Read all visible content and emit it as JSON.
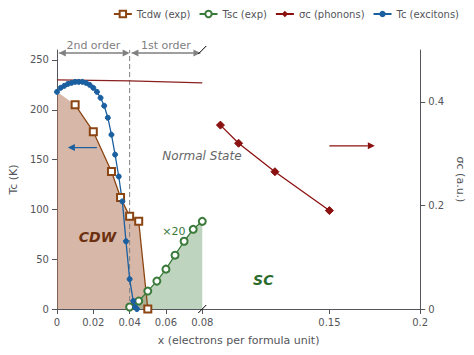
{
  "chart_data": {
    "type": "line",
    "xlabel": "x (electrons per formula unit)",
    "ylabel": "Tc (K)",
    "y2label": "σc (a.u.)",
    "xlim": [
      0,
      0.2
    ],
    "xticks": [
      0,
      0.02,
      0.04,
      0.06,
      0.08,
      0.15,
      0.2
    ],
    "ylim": [
      0,
      260
    ],
    "yticks": [
      0,
      50,
      100,
      150,
      200,
      250
    ],
    "y2lim": [
      0,
      0.5
    ],
    "y2ticks": [
      0,
      0.2,
      0.4
    ],
    "grid": false,
    "legend": "upper right",
    "series": [
      {
        "type": "area",
        "color": "#b07050",
        "x": [
          0.0,
          0.0,
          0.01,
          0.02,
          0.03,
          0.035,
          0.04,
          0.045,
          0.05,
          0.0
        ],
        "values": [
          0.0,
          218,
          205,
          178,
          138,
          112,
          93,
          88,
          0,
          0.0
        ]
      },
      {
        "type": "area",
        "color": "#80aa80",
        "x": [
          0.04,
          0.045,
          0.05,
          0.055,
          0.06,
          0.065,
          0.07,
          0.075,
          0.08,
          0.08,
          0.04
        ],
        "values": [
          2,
          8,
          18,
          28,
          40,
          54,
          68,
          80,
          88,
          0,
          0
        ]
      },
      {
        "type": "vline",
        "color": "gray",
        "line_style": "dashed",
        "x": [
          0.04
        ]
      },
      {
        "type": "line",
        "color": "#8B2020",
        "marker": "none",
        "x": [
          0.0,
          0.04,
          0.08
        ],
        "values": [
          230,
          229,
          227
        ]
      },
      {
        "type": "line",
        "name": "Tcdw (exp)",
        "color": "#8B4513",
        "marker": "open_square",
        "x": [
          0.01,
          0.02,
          0.03,
          0.035,
          0.04,
          0.045,
          0.05
        ],
        "values": [
          205,
          178,
          138,
          112,
          93,
          88,
          0
        ]
      },
      {
        "type": "line",
        "name": "Tsc (exp)",
        "color": "#3a7a3a",
        "marker": "open_circle",
        "x": [
          0.04,
          0.045,
          0.05,
          0.055,
          0.06,
          0.065,
          0.07,
          0.075,
          0.08
        ],
        "values": [
          2,
          8,
          18,
          28,
          40,
          54,
          68,
          80,
          88
        ]
      },
      {
        "type": "line",
        "name": "σc (phonons)",
        "color": "#8B1010",
        "marker": "diamond",
        "axis": "y2",
        "x": [
          0.09,
          0.1,
          0.12,
          0.15
        ],
        "values": [
          0.355,
          0.32,
          0.265,
          0.19
        ]
      },
      {
        "type": "line",
        "name": "Tc (excitons)",
        "color": "#1a5fa0",
        "marker": "circle",
        "x": [
          0.0,
          0.002,
          0.004,
          0.006,
          0.008,
          0.01,
          0.012,
          0.014,
          0.016,
          0.018,
          0.02,
          0.022,
          0.024,
          0.026,
          0.028,
          0.03,
          0.032,
          0.034,
          0.036,
          0.038,
          0.04,
          0.042,
          0.043,
          0.044
        ],
        "values": [
          218,
          222,
          224,
          226,
          227,
          228,
          228,
          228,
          227,
          225,
          222,
          218,
          212,
          204,
          192,
          175,
          155,
          133,
          108,
          68,
          30,
          8,
          2,
          0
        ]
      }
    ],
    "annotations": [
      {
        "arrow_from": [
          0.15,
          0.315
        ],
        "arrow_to": [
          0.175,
          0.315
        ],
        "axis": "y2",
        "color": "#8B1010"
      },
      {
        "arrow_from": [
          0.022,
          162
        ],
        "arrow_to": [
          0.006,
          162
        ],
        "color": "#1a5fa0"
      },
      {
        "text": "CDW",
        "x": 0.012,
        "y": 65,
        "color": "#6b3010",
        "style": "bold italic"
      },
      {
        "text": "SC",
        "x": 0.108,
        "y": 22,
        "color": "#2a6a2a",
        "style": "bold italic"
      },
      {
        "text": "Normal State",
        "x": 0.058,
        "y": 148,
        "color": "#666666",
        "style": "italic"
      },
      {
        "text": "×20",
        "x": 0.058,
        "y": 72,
        "color": "#3a7a3a"
      },
      {
        "arrow_from": [
          0.001,
          257
        ],
        "arrow_to": [
          0.04,
          257
        ],
        "color": "gray"
      },
      {
        "arrow_from": [
          0.039,
          257
        ],
        "arrow_to": [
          0.001,
          257
        ],
        "color": "gray"
      },
      {
        "text": "2nd order",
        "x": 0.02,
        "y": 259,
        "color": "gray",
        "align": "center"
      },
      {
        "arrow_from": [
          0.041,
          257
        ],
        "arrow_to": [
          0.079,
          257
        ],
        "color": "gray"
      },
      {
        "arrow_from": [
          0.079,
          257
        ],
        "arrow_to": [
          0.041,
          257
        ],
        "color": "gray"
      },
      {
        "text": "1st order",
        "x": 0.06,
        "y": 259,
        "color": "gray",
        "align": "center"
      },
      {
        "axis_break_x": 0.08
      }
    ]
  }
}
